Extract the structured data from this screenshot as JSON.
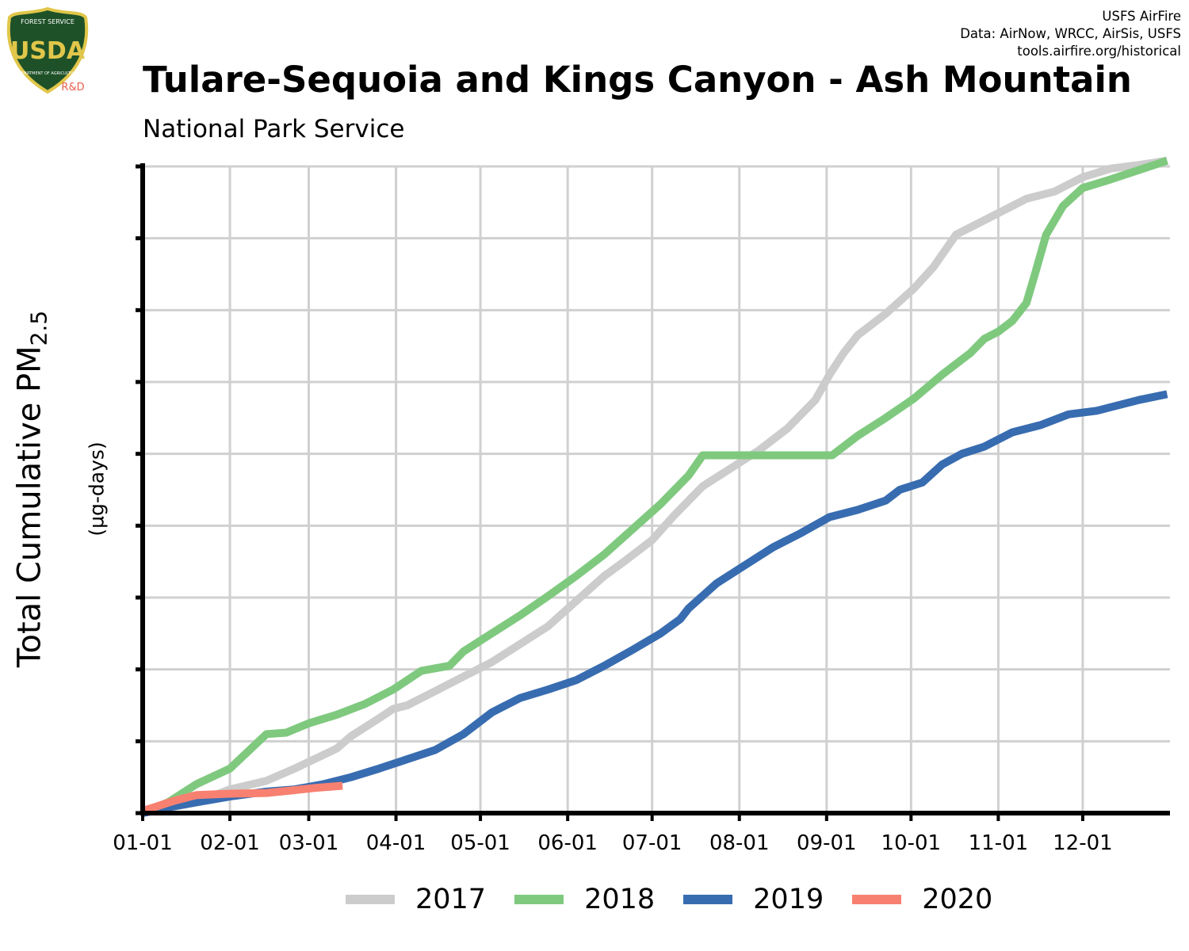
{
  "header": {
    "title": "Tulare-Sequoia and Kings Canyon - Ash Mountain",
    "subtitle": "National Park Service",
    "credits": [
      "USFS AirFire",
      "Data: AirNow, WRCC, AirSis, USFS",
      "tools.airfire.org/historical"
    ]
  },
  "logo": {
    "top_text": "FOREST SERVICE",
    "letters": "USDA",
    "bottom_text": "DEPARTMENT OF AGRICULTURE",
    "tag": "R&D",
    "colors": {
      "shield": "#1e5128",
      "border": "#e0c64a",
      "tag": "#e8604c"
    }
  },
  "axis": {
    "ylabel": "Total Cumulative PM",
    "ylabel_sub": "2.5",
    "yunits": "(µg-days)"
  },
  "chart_data": {
    "type": "line",
    "xlabel": "",
    "ylabel": "Total Cumulative PM2.5 (µg-days)",
    "x_unit": "day of year",
    "xlim": [
      1,
      366
    ],
    "ylim": [
      0,
      9
    ],
    "y_tick_labels_shown": false,
    "x_ticks": [
      {
        "label": "01-01",
        "day": 1
      },
      {
        "label": "02-01",
        "day": 32
      },
      {
        "label": "03-01",
        "day": 60
      },
      {
        "label": "04-01",
        "day": 91
      },
      {
        "label": "05-01",
        "day": 121
      },
      {
        "label": "06-01",
        "day": 152
      },
      {
        "label": "07-01",
        "day": 182
      },
      {
        "label": "08-01",
        "day": 213
      },
      {
        "label": "09-01",
        "day": 244
      },
      {
        "label": "10-01",
        "day": 274
      },
      {
        "label": "11-01",
        "day": 305
      },
      {
        "label": "12-01",
        "day": 335
      }
    ],
    "y_ticks": [
      0,
      1,
      2,
      3,
      4,
      5,
      6,
      7,
      8,
      9
    ],
    "grid": true,
    "legend_position": "bottom",
    "series": [
      {
        "name": "2017",
        "color": "#cccccc",
        "points": [
          [
            1,
            0
          ],
          [
            20,
            0.15
          ],
          [
            32,
            0.33
          ],
          [
            45,
            0.45
          ],
          [
            55,
            0.62
          ],
          [
            62,
            0.75
          ],
          [
            70,
            0.9
          ],
          [
            75,
            1.07
          ],
          [
            85,
            1.32
          ],
          [
            90,
            1.45
          ],
          [
            95,
            1.5
          ],
          [
            105,
            1.7
          ],
          [
            115,
            1.9
          ],
          [
            125,
            2.1
          ],
          [
            135,
            2.35
          ],
          [
            145,
            2.6
          ],
          [
            155,
            2.95
          ],
          [
            165,
            3.3
          ],
          [
            172,
            3.5
          ],
          [
            182,
            3.8
          ],
          [
            190,
            4.15
          ],
          [
            200,
            4.55
          ],
          [
            210,
            4.8
          ],
          [
            220,
            5.05
          ],
          [
            230,
            5.35
          ],
          [
            235,
            5.55
          ],
          [
            240,
            5.75
          ],
          [
            245,
            6.1
          ],
          [
            250,
            6.4
          ],
          [
            255,
            6.65
          ],
          [
            265,
            6.95
          ],
          [
            275,
            7.3
          ],
          [
            282,
            7.6
          ],
          [
            290,
            8.05
          ],
          [
            300,
            8.25
          ],
          [
            305,
            8.35
          ],
          [
            315,
            8.55
          ],
          [
            325,
            8.65
          ],
          [
            335,
            8.85
          ],
          [
            345,
            8.97
          ],
          [
            355,
            9.02
          ],
          [
            365,
            9.08
          ]
        ]
      },
      {
        "name": "2018",
        "color": "#7fc97f",
        "points": [
          [
            1,
            0
          ],
          [
            10,
            0.15
          ],
          [
            20,
            0.4
          ],
          [
            32,
            0.62
          ],
          [
            45,
            1.1
          ],
          [
            52,
            1.12
          ],
          [
            60,
            1.25
          ],
          [
            70,
            1.37
          ],
          [
            80,
            1.52
          ],
          [
            90,
            1.72
          ],
          [
            100,
            1.98
          ],
          [
            110,
            2.05
          ],
          [
            115,
            2.25
          ],
          [
            125,
            2.5
          ],
          [
            135,
            2.75
          ],
          [
            145,
            3.02
          ],
          [
            155,
            3.3
          ],
          [
            165,
            3.6
          ],
          [
            175,
            3.95
          ],
          [
            185,
            4.3
          ],
          [
            195,
            4.7
          ],
          [
            200,
            4.98
          ],
          [
            210,
            4.98
          ],
          [
            220,
            4.98
          ],
          [
            230,
            4.98
          ],
          [
            240,
            4.98
          ],
          [
            246,
            4.98
          ],
          [
            255,
            5.25
          ],
          [
            265,
            5.5
          ],
          [
            275,
            5.77
          ],
          [
            285,
            6.1
          ],
          [
            295,
            6.4
          ],
          [
            300,
            6.6
          ],
          [
            305,
            6.7
          ],
          [
            310,
            6.85
          ],
          [
            315,
            7.1
          ],
          [
            318,
            7.5
          ],
          [
            322,
            8.05
          ],
          [
            328,
            8.45
          ],
          [
            335,
            8.7
          ],
          [
            345,
            8.82
          ],
          [
            355,
            8.95
          ],
          [
            365,
            9.08
          ]
        ]
      },
      {
        "name": "2019",
        "color": "#386cb0",
        "points": [
          [
            1,
            0
          ],
          [
            10,
            0.08
          ],
          [
            20,
            0.15
          ],
          [
            32,
            0.23
          ],
          [
            45,
            0.3
          ],
          [
            55,
            0.33
          ],
          [
            65,
            0.4
          ],
          [
            75,
            0.5
          ],
          [
            85,
            0.62
          ],
          [
            95,
            0.75
          ],
          [
            105,
            0.88
          ],
          [
            115,
            1.1
          ],
          [
            125,
            1.4
          ],
          [
            135,
            1.6
          ],
          [
            145,
            1.72
          ],
          [
            155,
            1.85
          ],
          [
            165,
            2.05
          ],
          [
            175,
            2.27
          ],
          [
            185,
            2.5
          ],
          [
            192,
            2.7
          ],
          [
            195,
            2.85
          ],
          [
            205,
            3.2
          ],
          [
            215,
            3.45
          ],
          [
            225,
            3.7
          ],
          [
            235,
            3.9
          ],
          [
            245,
            4.12
          ],
          [
            255,
            4.22
          ],
          [
            265,
            4.35
          ],
          [
            270,
            4.5
          ],
          [
            278,
            4.6
          ],
          [
            285,
            4.85
          ],
          [
            292,
            5.0
          ],
          [
            300,
            5.1
          ],
          [
            310,
            5.3
          ],
          [
            320,
            5.4
          ],
          [
            330,
            5.55
          ],
          [
            340,
            5.6
          ],
          [
            355,
            5.75
          ],
          [
            365,
            5.83
          ]
        ]
      },
      {
        "name": "2020",
        "color": "#f88070",
        "points": [
          [
            1,
            0.03
          ],
          [
            5,
            0.08
          ],
          [
            12,
            0.17
          ],
          [
            20,
            0.25
          ],
          [
            32,
            0.27
          ],
          [
            45,
            0.28
          ],
          [
            55,
            0.32
          ],
          [
            62,
            0.35
          ],
          [
            72,
            0.38
          ]
        ]
      }
    ]
  }
}
